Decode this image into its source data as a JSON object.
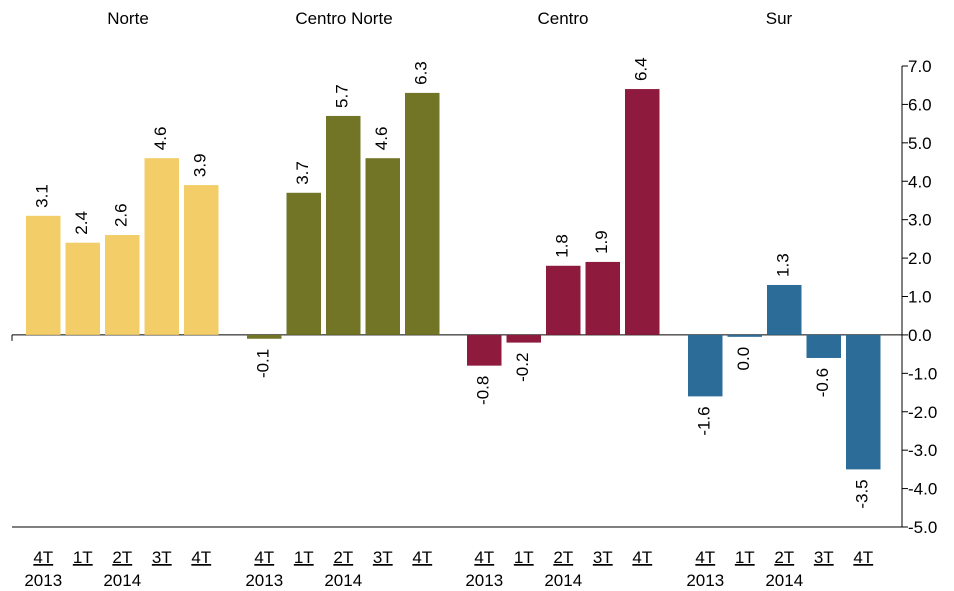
{
  "chart_data": {
    "type": "bar",
    "groups": [
      {
        "name": "Norte",
        "color": "#F2CD68",
        "values": [
          3.1,
          2.4,
          2.6,
          4.6,
          3.9
        ],
        "labels": [
          "3.1",
          "2.4",
          "2.6",
          "4.6",
          "3.9"
        ]
      },
      {
        "name": "Centro Norte",
        "color": "#727426",
        "values": [
          -0.1,
          3.7,
          5.7,
          4.6,
          6.3
        ],
        "labels": [
          "-0.1",
          "3.7",
          "5.7",
          "4.6",
          "6.3"
        ]
      },
      {
        "name": "Centro",
        "color": "#8E1B3E",
        "values": [
          -0.8,
          -0.2,
          1.8,
          1.9,
          6.4
        ],
        "labels": [
          "-0.8",
          "-0.2",
          "1.8",
          "1.9",
          "6.4"
        ]
      },
      {
        "name": "Sur",
        "color": "#2B6C99",
        "values": [
          -1.6,
          -0.05,
          1.3,
          -0.6,
          -3.5
        ],
        "labels": [
          "-1.6",
          "0.0",
          "1.3",
          "-0.6",
          "-3.5"
        ]
      }
    ],
    "quarters": [
      "4T",
      "1T",
      "2T",
      "3T",
      "4T"
    ],
    "years": [
      "2013",
      "2014"
    ],
    "y_axis": {
      "position": "right",
      "ylim": [
        -5.0,
        7.0
      ],
      "ticks": [
        7.0,
        6.0,
        5.0,
        4.0,
        3.0,
        2.0,
        1.0,
        0.0,
        -1.0,
        -2.0,
        -3.0,
        -4.0,
        -5.0
      ],
      "tick_labels": [
        "7.0",
        "6.0",
        "5.0",
        "4.0",
        "3.0",
        "2.0",
        "1.0",
        "0.0",
        "-1.0",
        "-2.0",
        "-3.0",
        "-4.0",
        "-5.0"
      ]
    },
    "grid": false,
    "legend": "none"
  }
}
